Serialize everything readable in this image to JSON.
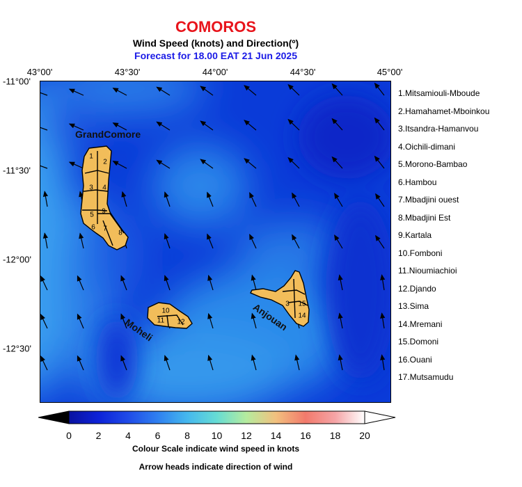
{
  "header": {
    "title": "COMOROS",
    "subtitle": "Wind Speed (knots) and Direction(º)",
    "forecast": "Forecast for  18.00 EAT 21 Jun 2025"
  },
  "lon_labels": [
    "43°00'",
    "43°30'",
    "44°00'",
    "44°30'",
    "45°00'"
  ],
  "lat_labels": [
    "-11°00'",
    "-11°30'",
    "-12°00'",
    "-12°30'"
  ],
  "islands": {
    "grand_comore": "GrandComore",
    "moheli": "Moheli",
    "anjouan": "Anjouan"
  },
  "district_numbers": {
    "gc": [
      "1",
      "2",
      "3",
      "4",
      "5",
      "6",
      "7",
      "8",
      "9"
    ],
    "mo": [
      "10",
      "11",
      "12"
    ],
    "an": [
      "3",
      "15",
      "14"
    ]
  },
  "regions": [
    "1.Mitsamiouli-Mboude",
    "2.Hamahamet-Mboinkou",
    "3.Itsandra-Hamanvou",
    "4.Oichili-dimani",
    "5.Morono-Bambao",
    "6.Hambou",
    "7.Mbadjini ouest",
    "8.Mbadjini Est",
    "9.Kartala",
    "10.Fomboni",
    "11.Nioumiachioi",
    "12.Djando",
    "13.Sima",
    "14.Mremani",
    "15.Domoni",
    "16.Ouani",
    "17.Mutsamudu"
  ],
  "colorbar": {
    "ticks": [
      "0",
      "2",
      "4",
      "6",
      "8",
      "10",
      "12",
      "14",
      "16",
      "18",
      "20"
    ],
    "caption1": "Colour Scale indicate wind speed in knots",
    "caption2": "Arrow heads indicate direction of wind",
    "colors": [
      "#000000",
      "#0d1fc0",
      "#1f4be8",
      "#2f7bf0",
      "#3fb0ef",
      "#5ed7d8",
      "#9ee9a8",
      "#e8e28a",
      "#f4a07a",
      "#f26f6a",
      "#f5b2b0",
      "#ffffff"
    ]
  },
  "colors": {
    "title": "#e8141b",
    "forecast": "#1a1ae6",
    "land": "#f2bd5a",
    "sea": "#0a3bd8"
  }
}
